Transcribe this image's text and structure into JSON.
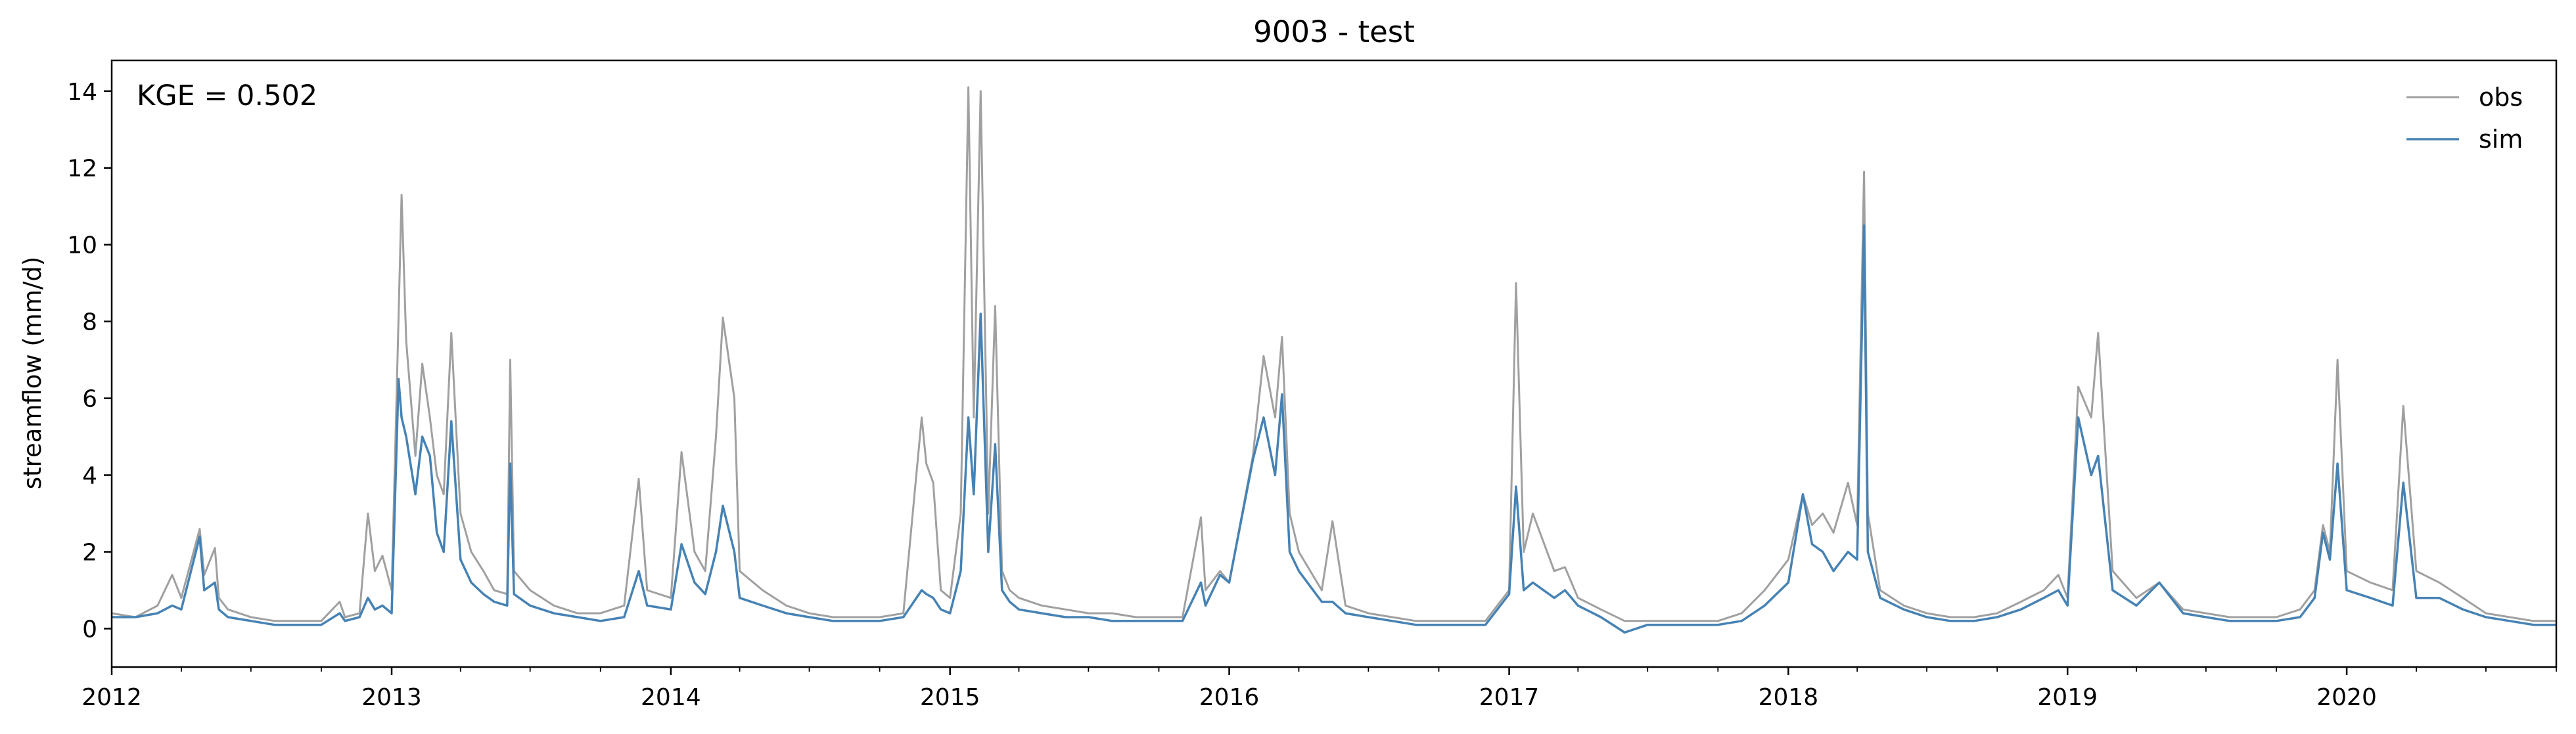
{
  "chart_data": {
    "type": "line",
    "title": "9003 - test",
    "xlabel": "",
    "ylabel": "streamflow (mm/d)",
    "annotation": "KGE = 0.502",
    "legend_position": "top-right",
    "grid": false,
    "xlim": [
      "2012-01-01",
      "2020-10-01"
    ],
    "ylim": [
      -1,
      14.8
    ],
    "x_ticks": [
      "2012",
      "2013",
      "2014",
      "2015",
      "2016",
      "2017",
      "2018",
      "2019",
      "2020"
    ],
    "y_ticks": [
      0,
      2,
      4,
      6,
      8,
      10,
      12,
      14
    ],
    "series": [
      {
        "name": "obs",
        "color": "#a0a0a0",
        "x": [
          "2012-01-01",
          "2012-02-01",
          "2012-03-01",
          "2012-03-20",
          "2012-04-01",
          "2012-04-25",
          "2012-05-01",
          "2012-05-15",
          "2012-05-20",
          "2012-06-01",
          "2012-07-01",
          "2012-08-01",
          "2012-09-01",
          "2012-10-01",
          "2012-10-25",
          "2012-11-01",
          "2012-11-20",
          "2012-12-01",
          "2012-12-10",
          "2012-12-20",
          "2013-01-01",
          "2013-01-10",
          "2013-01-14",
          "2013-01-20",
          "2013-02-01",
          "2013-02-10",
          "2013-02-20",
          "2013-03-01",
          "2013-03-10",
          "2013-03-20",
          "2013-04-01",
          "2013-04-15",
          "2013-05-01",
          "2013-05-15",
          "2013-06-01",
          "2013-06-05",
          "2013-06-10",
          "2013-07-01",
          "2013-08-01",
          "2013-09-01",
          "2013-10-01",
          "2013-11-01",
          "2013-11-20",
          "2013-12-01",
          "2014-01-01",
          "2014-01-15",
          "2014-02-01",
          "2014-02-15",
          "2014-03-01",
          "2014-03-10",
          "2014-03-25",
          "2014-04-01",
          "2014-05-01",
          "2014-06-01",
          "2014-07-01",
          "2014-08-01",
          "2014-09-01",
          "2014-10-01",
          "2014-11-01",
          "2014-11-25",
          "2014-12-01",
          "2014-12-10",
          "2014-12-20",
          "2015-01-01",
          "2015-01-15",
          "2015-01-25",
          "2015-02-01",
          "2015-02-10",
          "2015-02-20",
          "2015-03-01",
          "2015-03-10",
          "2015-03-20",
          "2015-04-01",
          "2015-05-01",
          "2015-06-01",
          "2015-07-01",
          "2015-08-01",
          "2015-09-01",
          "2015-10-01",
          "2015-11-01",
          "2015-11-25",
          "2015-12-01",
          "2015-12-20",
          "2016-01-01",
          "2016-02-01",
          "2016-02-15",
          "2016-03-01",
          "2016-03-10",
          "2016-03-20",
          "2016-04-01",
          "2016-05-01",
          "2016-05-15",
          "2016-06-01",
          "2016-07-01",
          "2016-08-01",
          "2016-09-01",
          "2016-10-01",
          "2016-11-01",
          "2016-12-01",
          "2017-01-01",
          "2017-01-10",
          "2017-01-20",
          "2017-02-01",
          "2017-03-01",
          "2017-03-15",
          "2017-04-01",
          "2017-05-01",
          "2017-06-01",
          "2017-07-01",
          "2017-08-01",
          "2017-09-01",
          "2017-10-01",
          "2017-11-01",
          "2017-12-01",
          "2018-01-01",
          "2018-01-20",
          "2018-02-01",
          "2018-02-15",
          "2018-03-01",
          "2018-03-20",
          "2018-04-01",
          "2018-04-10",
          "2018-04-15",
          "2018-05-01",
          "2018-06-01",
          "2018-07-01",
          "2018-08-01",
          "2018-09-01",
          "2018-10-01",
          "2018-11-01",
          "2018-12-01",
          "2018-12-20",
          "2019-01-01",
          "2019-01-15",
          "2019-02-01",
          "2019-02-10",
          "2019-03-01",
          "2019-04-01",
          "2019-05-01",
          "2019-06-01",
          "2019-07-01",
          "2019-08-01",
          "2019-09-01",
          "2019-10-01",
          "2019-11-01",
          "2019-11-20",
          "2019-12-01",
          "2019-12-10",
          "2019-12-20",
          "2020-01-01",
          "2020-02-01",
          "2020-03-01",
          "2020-03-15",
          "2020-04-01",
          "2020-05-01",
          "2020-06-01",
          "2020-07-01",
          "2020-08-01",
          "2020-09-01",
          "2020-10-01"
        ],
        "y": [
          0.4,
          0.3,
          0.6,
          1.4,
          0.8,
          2.6,
          1.4,
          2.1,
          0.8,
          0.5,
          0.3,
          0.2,
          0.2,
          0.2,
          0.7,
          0.3,
          0.4,
          3.0,
          1.5,
          1.9,
          1.0,
          8.1,
          11.3,
          7.5,
          4.5,
          6.9,
          5.5,
          4.0,
          3.5,
          7.7,
          3.0,
          2.0,
          1.5,
          1.0,
          0.9,
          7.0,
          1.5,
          1.0,
          0.6,
          0.4,
          0.4,
          0.6,
          3.9,
          1.0,
          0.8,
          4.6,
          2.0,
          1.5,
          5.0,
          8.1,
          6.0,
          1.5,
          1.0,
          0.6,
          0.4,
          0.3,
          0.3,
          0.3,
          0.4,
          5.5,
          4.3,
          3.8,
          1.0,
          0.8,
          3.0,
          14.1,
          5.5,
          14.0,
          3.0,
          8.4,
          1.5,
          1.0,
          0.8,
          0.6,
          0.5,
          0.4,
          0.4,
          0.3,
          0.3,
          0.3,
          2.9,
          1.0,
          1.5,
          1.2,
          4.5,
          7.1,
          5.5,
          7.6,
          3.0,
          2.0,
          1.0,
          2.8,
          0.6,
          0.4,
          0.3,
          0.2,
          0.2,
          0.2,
          0.2,
          1.0,
          9.0,
          2.0,
          3.0,
          1.5,
          1.6,
          0.8,
          0.5,
          0.2,
          0.2,
          0.2,
          0.2,
          0.2,
          0.4,
          1.0,
          1.8,
          3.5,
          2.7,
          3.0,
          2.5,
          3.8,
          2.7,
          11.9,
          3.0,
          1.0,
          0.6,
          0.4,
          0.3,
          0.3,
          0.4,
          0.7,
          1.0,
          1.4,
          0.8,
          6.3,
          5.5,
          7.7,
          1.5,
          0.8,
          1.2,
          0.5,
          0.4,
          0.3,
          0.3,
          0.3,
          0.5,
          1.0,
          2.7,
          2.0,
          7.0,
          1.5,
          1.2,
          1.0,
          5.8,
          1.5,
          1.2,
          0.8,
          0.4,
          0.3,
          0.2,
          0.2
        ]
      },
      {
        "name": "sim",
        "color": "#4682b4",
        "x": [
          "2012-01-01",
          "2012-02-01",
          "2012-03-01",
          "2012-03-20",
          "2012-04-01",
          "2012-04-25",
          "2012-05-01",
          "2012-05-15",
          "2012-05-20",
          "2012-06-01",
          "2012-07-01",
          "2012-08-01",
          "2012-09-01",
          "2012-10-01",
          "2012-10-25",
          "2012-11-01",
          "2012-11-20",
          "2012-12-01",
          "2012-12-10",
          "2012-12-20",
          "2013-01-01",
          "2013-01-10",
          "2013-01-14",
          "2013-01-20",
          "2013-02-01",
          "2013-02-10",
          "2013-02-20",
          "2013-03-01",
          "2013-03-10",
          "2013-03-20",
          "2013-04-01",
          "2013-04-15",
          "2013-05-01",
          "2013-05-15",
          "2013-06-01",
          "2013-06-05",
          "2013-06-10",
          "2013-07-01",
          "2013-08-01",
          "2013-09-01",
          "2013-10-01",
          "2013-11-01",
          "2013-11-20",
          "2013-12-01",
          "2014-01-01",
          "2014-01-15",
          "2014-02-01",
          "2014-02-15",
          "2014-03-01",
          "2014-03-10",
          "2014-03-25",
          "2014-04-01",
          "2014-05-01",
          "2014-06-01",
          "2014-07-01",
          "2014-08-01",
          "2014-09-01",
          "2014-10-01",
          "2014-11-01",
          "2014-11-25",
          "2014-12-01",
          "2014-12-10",
          "2014-12-20",
          "2015-01-01",
          "2015-01-15",
          "2015-01-25",
          "2015-02-01",
          "2015-02-10",
          "2015-02-20",
          "2015-03-01",
          "2015-03-10",
          "2015-03-20",
          "2015-04-01",
          "2015-05-01",
          "2015-06-01",
          "2015-07-01",
          "2015-08-01",
          "2015-09-01",
          "2015-10-01",
          "2015-11-01",
          "2015-11-25",
          "2015-12-01",
          "2015-12-20",
          "2016-01-01",
          "2016-02-01",
          "2016-02-15",
          "2016-03-01",
          "2016-03-10",
          "2016-03-20",
          "2016-04-01",
          "2016-05-01",
          "2016-05-15",
          "2016-06-01",
          "2016-07-01",
          "2016-08-01",
          "2016-09-01",
          "2016-10-01",
          "2016-11-01",
          "2016-12-01",
          "2017-01-01",
          "2017-01-10",
          "2017-01-20",
          "2017-02-01",
          "2017-03-01",
          "2017-03-15",
          "2017-04-01",
          "2017-05-01",
          "2017-06-01",
          "2017-07-01",
          "2017-08-01",
          "2017-09-01",
          "2017-10-01",
          "2017-11-01",
          "2017-12-01",
          "2018-01-01",
          "2018-01-20",
          "2018-02-01",
          "2018-02-15",
          "2018-03-01",
          "2018-03-20",
          "2018-04-01",
          "2018-04-10",
          "2018-04-15",
          "2018-05-01",
          "2018-06-01",
          "2018-07-01",
          "2018-08-01",
          "2018-09-01",
          "2018-10-01",
          "2018-11-01",
          "2018-12-01",
          "2018-12-20",
          "2019-01-01",
          "2019-01-15",
          "2019-02-01",
          "2019-02-10",
          "2019-03-01",
          "2019-04-01",
          "2019-05-01",
          "2019-06-01",
          "2019-07-01",
          "2019-08-01",
          "2019-09-01",
          "2019-10-01",
          "2019-11-01",
          "2019-11-20",
          "2019-12-01",
          "2019-12-10",
          "2019-12-20",
          "2020-01-01",
          "2020-02-01",
          "2020-03-01",
          "2020-03-15",
          "2020-04-01",
          "2020-05-01",
          "2020-06-01",
          "2020-07-01",
          "2020-08-01",
          "2020-09-01",
          "2020-10-01"
        ],
        "y": [
          0.3,
          0.3,
          0.4,
          0.6,
          0.5,
          2.4,
          1.0,
          1.2,
          0.5,
          0.3,
          0.2,
          0.1,
          0.1,
          0.1,
          0.4,
          0.2,
          0.3,
          0.8,
          0.5,
          0.6,
          0.4,
          6.5,
          5.5,
          5.0,
          3.5,
          5.0,
          4.5,
          2.5,
          2.0,
          5.4,
          1.8,
          1.2,
          0.9,
          0.7,
          0.6,
          4.3,
          0.9,
          0.6,
          0.4,
          0.3,
          0.2,
          0.3,
          1.5,
          0.6,
          0.5,
          2.2,
          1.2,
          0.9,
          2.0,
          3.2,
          2.0,
          0.8,
          0.6,
          0.4,
          0.3,
          0.2,
          0.2,
          0.2,
          0.3,
          1.0,
          0.9,
          0.8,
          0.5,
          0.4,
          1.5,
          5.5,
          3.5,
          8.2,
          2.0,
          4.8,
          1.0,
          0.7,
          0.5,
          0.4,
          0.3,
          0.3,
          0.2,
          0.2,
          0.2,
          0.2,
          1.2,
          0.6,
          1.4,
          1.2,
          4.4,
          5.5,
          4.0,
          6.1,
          2.0,
          1.5,
          0.7,
          0.7,
          0.4,
          0.3,
          0.2,
          0.1,
          0.1,
          0.1,
          0.1,
          0.9,
          3.7,
          1.0,
          1.2,
          0.8,
          1.0,
          0.6,
          0.3,
          -0.1,
          0.1,
          0.1,
          0.1,
          0.1,
          0.2,
          0.6,
          1.2,
          3.5,
          2.2,
          2.0,
          1.5,
          2.0,
          1.8,
          10.5,
          2.0,
          0.8,
          0.5,
          0.3,
          0.2,
          0.2,
          0.3,
          0.5,
          0.8,
          1.0,
          0.6,
          5.5,
          4.0,
          4.5,
          1.0,
          0.6,
          1.2,
          0.4,
          0.3,
          0.2,
          0.2,
          0.2,
          0.3,
          0.8,
          2.5,
          1.8,
          4.3,
          1.0,
          0.8,
          0.6,
          3.8,
          0.8,
          0.8,
          0.5,
          0.3,
          0.2,
          0.1,
          0.1
        ]
      }
    ]
  }
}
